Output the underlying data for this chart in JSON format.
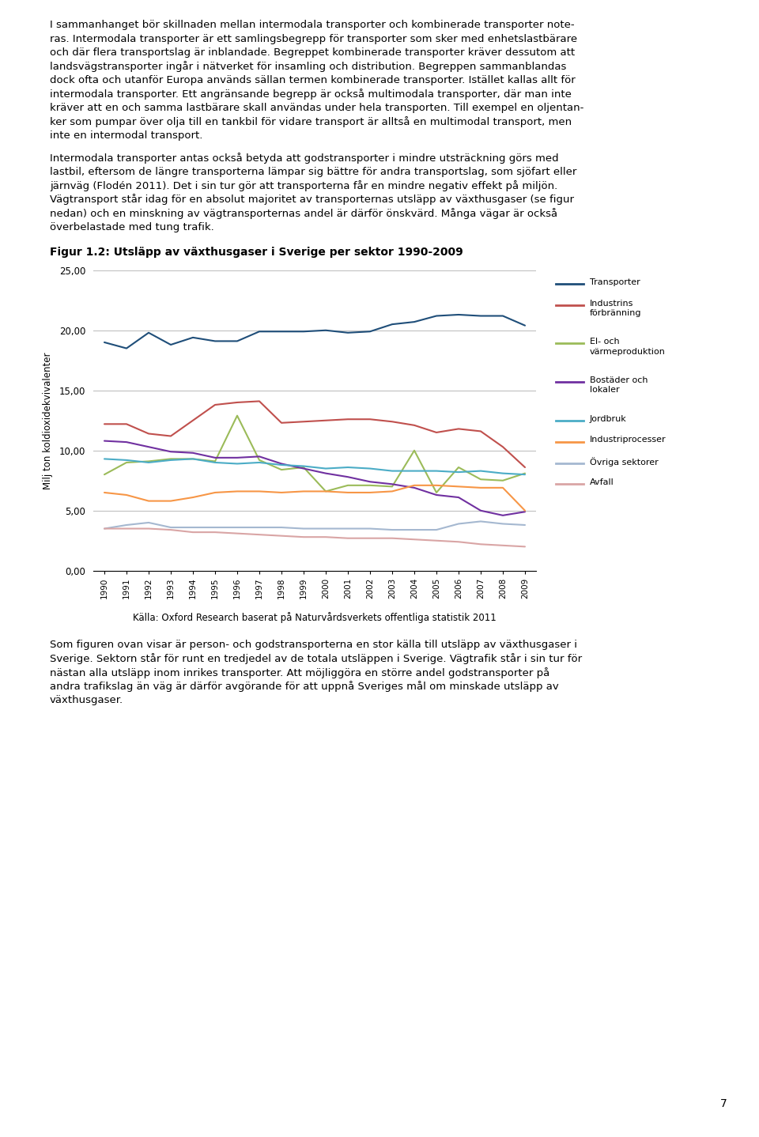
{
  "title_fig": "Figur 1.2: Utsläpp av växthusgaser i Sverige per sektor 1990-2009",
  "ylabel": "Milj ton koldioxidekvivalenter",
  "caption": "Källa: Oxford Research baserat på Naturvårdsverkets offentliga statistik 2011",
  "years": [
    1990,
    1991,
    1992,
    1993,
    1994,
    1995,
    1996,
    1997,
    1998,
    1999,
    2000,
    2001,
    2002,
    2003,
    2004,
    2005,
    2006,
    2007,
    2008,
    2009
  ],
  "series": {
    "Transporter": {
      "color": "#1F4E79",
      "values": [
        19.0,
        18.5,
        19.8,
        18.8,
        19.4,
        19.1,
        19.1,
        19.9,
        19.9,
        19.9,
        20.0,
        19.8,
        19.9,
        20.5,
        20.7,
        21.2,
        21.3,
        21.2,
        21.2,
        20.4
      ]
    },
    "Industrins\nförbränning": {
      "color": "#C0504D",
      "values": [
        12.2,
        12.2,
        11.4,
        11.2,
        12.5,
        13.8,
        14.0,
        14.1,
        12.3,
        12.4,
        12.5,
        12.6,
        12.6,
        12.4,
        12.1,
        11.5,
        11.8,
        11.6,
        10.3,
        8.6
      ]
    },
    "El- och\nvärmeproduktion": {
      "color": "#9BBB59",
      "values": [
        8.0,
        9.0,
        9.1,
        9.3,
        9.3,
        9.1,
        12.9,
        9.2,
        8.4,
        8.6,
        6.6,
        7.1,
        7.1,
        7.0,
        10.0,
        6.5,
        8.6,
        7.6,
        7.5,
        8.1
      ]
    },
    "Bostäder och\nlokaler": {
      "color": "#7030A0",
      "values": [
        10.8,
        10.7,
        10.3,
        9.9,
        9.8,
        9.4,
        9.4,
        9.5,
        8.9,
        8.5,
        8.1,
        7.8,
        7.4,
        7.2,
        6.9,
        6.3,
        6.1,
        5.0,
        4.6,
        4.9
      ]
    },
    "Jordbruk": {
      "color": "#4BACC6",
      "values": [
        9.3,
        9.2,
        9.0,
        9.2,
        9.3,
        9.0,
        8.9,
        9.0,
        8.8,
        8.7,
        8.5,
        8.6,
        8.5,
        8.3,
        8.3,
        8.3,
        8.2,
        8.3,
        8.1,
        8.0
      ]
    },
    "Industriprocesser": {
      "color": "#F79646",
      "values": [
        6.5,
        6.3,
        5.8,
        5.8,
        6.1,
        6.5,
        6.6,
        6.6,
        6.5,
        6.6,
        6.6,
        6.5,
        6.5,
        6.6,
        7.1,
        7.1,
        7.0,
        6.9,
        6.9,
        5.0
      ]
    },
    "Övriga sektorer": {
      "color": "#A5B8D0",
      "values": [
        3.5,
        3.8,
        4.0,
        3.6,
        3.6,
        3.6,
        3.6,
        3.6,
        3.6,
        3.5,
        3.5,
        3.5,
        3.5,
        3.4,
        3.4,
        3.4,
        3.9,
        4.1,
        3.9,
        3.8
      ]
    },
    "Avfall": {
      "color": "#D9A5A5",
      "values": [
        3.5,
        3.5,
        3.5,
        3.4,
        3.2,
        3.2,
        3.1,
        3.0,
        2.9,
        2.8,
        2.8,
        2.7,
        2.7,
        2.7,
        2.6,
        2.5,
        2.4,
        2.2,
        2.1,
        2.0
      ]
    }
  },
  "ylim": [
    0,
    25
  ],
  "yticks": [
    0.0,
    5.0,
    10.0,
    15.0,
    20.0,
    25.0
  ],
  "background_color": "#FFFFFF",
  "grid_color": "#C0C0C0",
  "legend_items": [
    [
      "Transporter",
      "#1F4E79"
    ],
    [
      "Industrins\nförbränning",
      "#C0504D"
    ],
    [
      "El- och\nvärmeproduktion",
      "#9BBB59"
    ],
    [
      "Bostäder och\nlokaler",
      "#7030A0"
    ],
    [
      "Jordbruk",
      "#4BACC6"
    ],
    [
      "Industriprocesser",
      "#F79646"
    ],
    [
      "Övriga sektorer",
      "#A5B8D0"
    ],
    [
      "Avfall",
      "#D9A5A5"
    ]
  ],
  "page_number": "7",
  "fig_width": 9.6,
  "fig_height": 14.38,
  "dpi": 100
}
